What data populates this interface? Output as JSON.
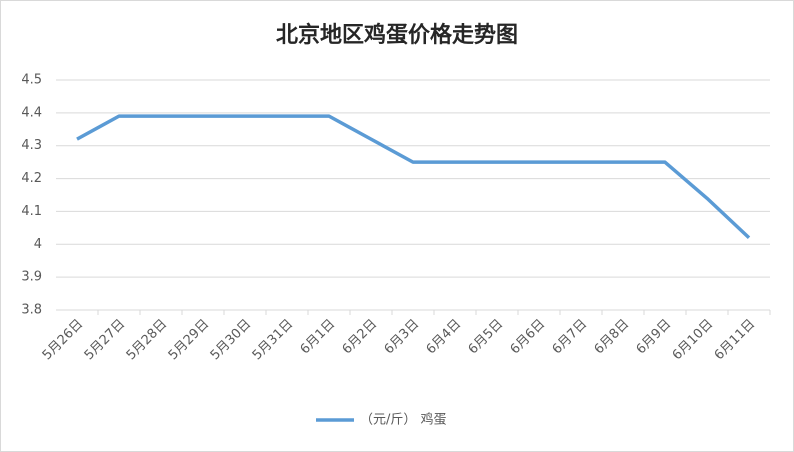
{
  "chart_data": {
    "type": "line",
    "title": "北京地区鸡蛋价格走势图",
    "categories": [
      "5月26日",
      "5月27日",
      "5月28日",
      "5月29日",
      "5月30日",
      "5月31日",
      "6月1日",
      "6月2日",
      "6月3日",
      "6月4日",
      "6月5日",
      "6月6日",
      "6月7日",
      "6月8日",
      "6月9日",
      "6月10日",
      "6月11日"
    ],
    "series": [
      {
        "name": "（元/斤） 鸡蛋",
        "color": "#5b9bd5",
        "values": [
          4.32,
          4.39,
          4.39,
          4.39,
          4.39,
          4.39,
          4.39,
          4.32,
          4.25,
          4.25,
          4.25,
          4.25,
          4.25,
          4.25,
          4.25,
          4.14,
          4.02
        ]
      }
    ],
    "ylim": [
      3.8,
      4.5
    ],
    "yticks": [
      3.8,
      3.9,
      4,
      4.1,
      4.2,
      4.3,
      4.4,
      4.5
    ],
    "grid": true,
    "legend": "bottom"
  }
}
